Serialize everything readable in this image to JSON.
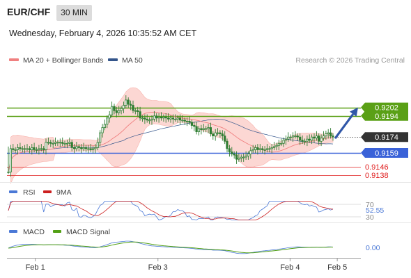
{
  "header": {
    "pair": "EUR/CHF",
    "timeframe": "30 MIN",
    "datetime": "Wednesday, February 4, 2026 10:35:52 AM CET"
  },
  "legend": {
    "ma20_label": "MA 20 + Bollinger Bands",
    "ma50_label": "MA 50",
    "credit": "Research © 2026 Trading Central"
  },
  "colors": {
    "ma20": "#f08080",
    "ma50": "#34558b",
    "band_fill": "#fcd7d3",
    "candle": "#2e7d32",
    "resistance": "#5aa016",
    "support": "#3a62d8",
    "level_red": "#e01f1f",
    "current_price": "#333333",
    "rsi": "#4a78d6",
    "rsi_ma": "#cc1f1f",
    "macd": "#4a78d6",
    "macd_signal": "#52a015",
    "arrow": "#3057a8"
  },
  "chart_data": [
    {
      "type": "candlestick",
      "title": "EUR/CHF",
      "price_labels": [
        "0.9202",
        "0.9194",
        "0.9174",
        "0.9159",
        "0.9146",
        "0.9138"
      ],
      "levels": [
        {
          "value": 0.9202,
          "kind": "resistance"
        },
        {
          "value": 0.9194,
          "kind": "resistance"
        },
        {
          "value": 0.9174,
          "kind": "current"
        },
        {
          "value": 0.9159,
          "kind": "support"
        },
        {
          "value": 0.9146,
          "kind": "level"
        },
        {
          "value": 0.9138,
          "kind": "level"
        }
      ],
      "ylim": [
        0.9134,
        0.923
      ],
      "x_ticks": [
        "Feb 1",
        "Feb 3",
        "Feb 4",
        "Feb 5"
      ],
      "x_tick_positions": [
        0.5,
        13.5,
        27.5,
        32.5
      ],
      "xlim": [
        -2.5,
        35
      ],
      "close": [
        0.9141,
        0.9163,
        0.9162,
        0.9162,
        0.9164,
        0.9163,
        0.9163,
        0.9163,
        0.9163,
        0.9162,
        0.9164,
        0.9162,
        0.9162,
        0.9163,
        0.9163,
        0.9162,
        0.9169,
        0.9169,
        0.9168,
        0.9168,
        0.9169,
        0.9169,
        0.9169,
        0.9168,
        0.9168,
        0.9168,
        0.9169,
        0.9164,
        0.9163,
        0.9165,
        0.9164,
        0.9163,
        0.9164,
        0.9163,
        0.9163,
        0.9162,
        0.9163,
        0.9164,
        0.9169,
        0.9178,
        0.9183,
        0.9186,
        0.9192,
        0.9195,
        0.9203,
        0.9199,
        0.9197,
        0.9199,
        0.9201,
        0.9204,
        0.9209,
        0.9205,
        0.9204,
        0.9199,
        0.9199,
        0.9198,
        0.9192,
        0.9192,
        0.9191,
        0.919,
        0.919,
        0.9191,
        0.9194,
        0.9192,
        0.9193,
        0.9192,
        0.9193,
        0.9192,
        0.9191,
        0.9192,
        0.9191,
        0.9191,
        0.9192,
        0.919,
        0.919,
        0.9189,
        0.9189,
        0.9188,
        0.9185,
        0.9184,
        0.9179,
        0.9182,
        0.9181,
        0.9182,
        0.9182,
        0.9183,
        0.9177,
        0.9175,
        0.9178,
        0.9178,
        0.9177,
        0.9175,
        0.917,
        0.9163,
        0.916,
        0.9158,
        0.9157,
        0.9153,
        0.9154,
        0.9155,
        0.9155,
        0.9156,
        0.9158,
        0.9161,
        0.9162,
        0.9164,
        0.9162,
        0.9163,
        0.9162,
        0.9162,
        0.9163,
        0.9163,
        0.9164,
        0.9165,
        0.9166,
        0.9168,
        0.9168,
        0.9171,
        0.9172,
        0.9174,
        0.9174,
        0.9175,
        0.9175,
        0.9174,
        0.9171,
        0.917,
        0.917,
        0.9172,
        0.9171,
        0.9174,
        0.9173,
        0.9175,
        0.917,
        0.9173,
        0.9175,
        0.9177,
        0.9178,
        0.9175,
        0.9174
      ]
    },
    {
      "type": "line",
      "title": "RSI",
      "series": [
        {
          "name": "RSI"
        },
        {
          "name": "9MA"
        }
      ],
      "y_ticks": [
        "70",
        "30"
      ],
      "current_value": "52.55",
      "ylim": [
        20,
        80
      ]
    },
    {
      "type": "line",
      "title": "MACD",
      "series": [
        {
          "name": "MACD"
        },
        {
          "name": "MACD Signal"
        }
      ],
      "current_value": "0.00"
    }
  ],
  "sub_panels": {
    "rsi_label": "RSI",
    "rsi_ma_label": "9MA",
    "macd_label": "MACD",
    "signal_label": "MACD Signal"
  }
}
